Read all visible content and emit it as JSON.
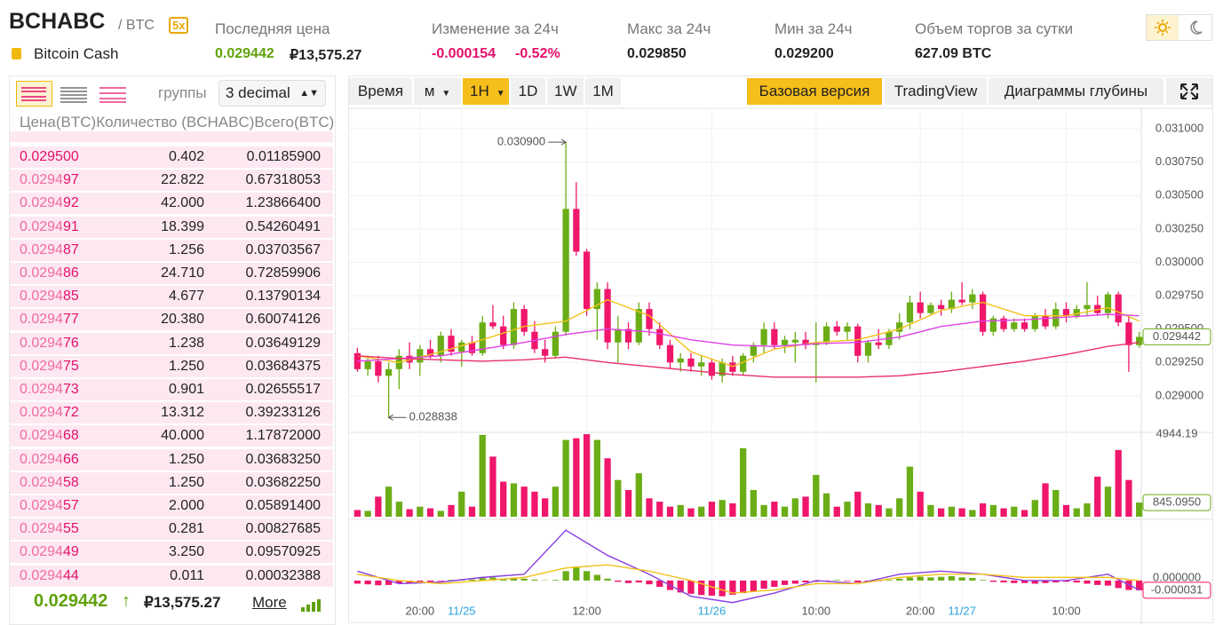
{
  "header": {
    "symbol": "BCHABC",
    "quote": "/ BTC",
    "leverage": "5x",
    "name": "Bitcoin Cash",
    "stats": [
      {
        "label": "Последняя цена",
        "value": "0.029442",
        "extra": "₽13,575.27"
      },
      {
        "label": "Изменение за 24ч",
        "value": "-0.000154",
        "extra": "-0.52%"
      },
      {
        "label": "Макс за 24ч",
        "value": "0.029850"
      },
      {
        "label": "Мин за 24ч",
        "value": "0.029200"
      },
      {
        "label": "Объем торгов за сутки",
        "value": "627.09 BTC"
      }
    ]
  },
  "orderbook": {
    "group_label": "группы",
    "group_value": "3 decimal",
    "columns": [
      "Цена(BTC)",
      "Количество (BCHABC)",
      "Всего(BTC)"
    ],
    "rows": [
      {
        "price": [
          "0.029500"
        ],
        "amount": "0.402",
        "total": "0.01185900"
      },
      {
        "price": [
          "0.0294",
          "97"
        ],
        "amount": "22.822",
        "total": "0.67318053"
      },
      {
        "price": [
          "0.0294",
          "92"
        ],
        "amount": "42.000",
        "total": "1.23866400"
      },
      {
        "price": [
          "0.0294",
          "91"
        ],
        "amount": "18.399",
        "total": "0.54260491"
      },
      {
        "price": [
          "0.0294",
          "87"
        ],
        "amount": "1.256",
        "total": "0.03703567"
      },
      {
        "price": [
          "0.0294",
          "86"
        ],
        "amount": "24.710",
        "total": "0.72859906"
      },
      {
        "price": [
          "0.0294",
          "85"
        ],
        "amount": "4.677",
        "total": "0.13790134"
      },
      {
        "price": [
          "0.0294",
          "77"
        ],
        "amount": "20.380",
        "total": "0.60074126"
      },
      {
        "price": [
          "0.0294",
          "76"
        ],
        "amount": "1.238",
        "total": "0.03649129"
      },
      {
        "price": [
          "0.0294",
          "75"
        ],
        "amount": "1.250",
        "total": "0.03684375"
      },
      {
        "price": [
          "0.0294",
          "73"
        ],
        "amount": "0.901",
        "total": "0.02655517"
      },
      {
        "price": [
          "0.0294",
          "72"
        ],
        "amount": "13.312",
        "total": "0.39233126"
      },
      {
        "price": [
          "0.0294",
          "68"
        ],
        "amount": "40.000",
        "total": "1.17872000"
      },
      {
        "price": [
          "0.0294",
          "66"
        ],
        "amount": "1.250",
        "total": "0.03683250"
      },
      {
        "price": [
          "0.0294",
          "58"
        ],
        "amount": "1.250",
        "total": "0.03682250"
      },
      {
        "price": [
          "0.0294",
          "57"
        ],
        "amount": "2.000",
        "total": "0.05891400"
      },
      {
        "price": [
          "0.0294",
          "55"
        ],
        "amount": "0.281",
        "total": "0.00827685"
      },
      {
        "price": [
          "0.0294",
          "49"
        ],
        "amount": "3.250",
        "total": "0.09570925"
      },
      {
        "price": [
          "0.0294",
          "44"
        ],
        "amount": "0.011",
        "total": "0.00032388"
      }
    ],
    "last_price": "0.029442",
    "last_fiat": "₽13,575.27",
    "more": "More"
  },
  "toolbar": {
    "intervals": [
      "Время",
      "м",
      "1H",
      "1D",
      "1W",
      "1M"
    ],
    "active_interval": 2,
    "views": [
      "Базовая версия",
      "TradingView",
      "Диаграммы глубины"
    ],
    "active_view": 0
  },
  "chart_data": {
    "type": "candlestick",
    "up_color": "#6aad16",
    "down_color": "#f0166b",
    "xlim": [
      -0.8,
      75.2
    ],
    "xticks": [
      {
        "value": 6,
        "label": "20:00"
      },
      {
        "value": 22,
        "label": "12:00"
      },
      {
        "value": 44,
        "label": "10:00"
      },
      {
        "value": 54,
        "label": "20:00"
      },
      {
        "value": 68,
        "label": "10:00"
      }
    ],
    "date_ticks": [
      {
        "value": 10,
        "label": "11/25"
      },
      {
        "value": 34,
        "label": "11/26"
      },
      {
        "value": 58,
        "label": "11/27"
      }
    ],
    "date_color": "#2aa4dc",
    "ylim": [
      0.02874,
      0.03112
    ],
    "yticks": [
      {
        "value": 0.029,
        "label": "0.029000"
      },
      {
        "value": 0.02925,
        "label": "0.029250"
      },
      {
        "value": 0.0295,
        "label": "0.029500"
      },
      {
        "value": 0.02975,
        "label": "0.029750"
      },
      {
        "value": 0.03,
        "label": "0.030000"
      },
      {
        "value": 0.03025,
        "label": "0.030250"
      },
      {
        "value": 0.0305,
        "label": "0.030500"
      },
      {
        "value": 0.03075,
        "label": "0.030750"
      },
      {
        "value": 0.031,
        "label": "0.031000"
      }
    ],
    "grid": true,
    "candles": [
      [
        0.02932,
        0.02936,
        0.02918,
        0.0292
      ],
      [
        0.0292,
        0.0293,
        0.02915,
        0.02926
      ],
      [
        0.02926,
        0.0293,
        0.0291,
        0.02915
      ],
      [
        0.02915,
        0.02925,
        0.028838,
        0.0292
      ],
      [
        0.0292,
        0.02935,
        0.02905,
        0.0293
      ],
      [
        0.0293,
        0.0294,
        0.0292,
        0.02925
      ],
      [
        0.02925,
        0.02938,
        0.02915,
        0.02935
      ],
      [
        0.02935,
        0.02942,
        0.02928,
        0.0293
      ],
      [
        0.0293,
        0.02948,
        0.02925,
        0.02945
      ],
      [
        0.02945,
        0.0295,
        0.0293,
        0.02933
      ],
      [
        0.02933,
        0.02942,
        0.02922,
        0.0294
      ],
      [
        0.0294,
        0.02945,
        0.0293,
        0.02932
      ],
      [
        0.02932,
        0.0296,
        0.0293,
        0.02955
      ],
      [
        0.02955,
        0.02968,
        0.0295,
        0.02952
      ],
      [
        0.02952,
        0.0296,
        0.02935,
        0.02938
      ],
      [
        0.02938,
        0.0297,
        0.02935,
        0.02965
      ],
      [
        0.02965,
        0.02968,
        0.02945,
        0.02948
      ],
      [
        0.02948,
        0.02956,
        0.02932,
        0.02935
      ],
      [
        0.02935,
        0.02942,
        0.02925,
        0.0293
      ],
      [
        0.0293,
        0.02952,
        0.02928,
        0.02948
      ],
      [
        0.02948,
        0.0309,
        0.02945,
        0.0304
      ],
      [
        0.0304,
        0.0306,
        0.03005,
        0.03008
      ],
      [
        0.03008,
        0.0301,
        0.0296,
        0.02965
      ],
      [
        0.02965,
        0.02985,
        0.02942,
        0.0298
      ],
      [
        0.0298,
        0.02985,
        0.02935,
        0.0294
      ],
      [
        0.0294,
        0.0296,
        0.02925,
        0.0295
      ],
      [
        0.0295,
        0.02955,
        0.02935,
        0.0294
      ],
      [
        0.0294,
        0.0297,
        0.02938,
        0.02965
      ],
      [
        0.02965,
        0.0297,
        0.02945,
        0.0295
      ],
      [
        0.0295,
        0.02955,
        0.02935,
        0.02938
      ],
      [
        0.02938,
        0.02942,
        0.0292,
        0.02925
      ],
      [
        0.02925,
        0.02932,
        0.02918,
        0.02928
      ],
      [
        0.02928,
        0.02932,
        0.02918,
        0.02922
      ],
      [
        0.02922,
        0.0293,
        0.02915,
        0.02925
      ],
      [
        0.02925,
        0.02928,
        0.02912,
        0.02915
      ],
      [
        0.02915,
        0.02928,
        0.0291,
        0.02925
      ],
      [
        0.02925,
        0.0293,
        0.02915,
        0.02918
      ],
      [
        0.02918,
        0.02932,
        0.02915,
        0.0293
      ],
      [
        0.0293,
        0.0294,
        0.02925,
        0.02938
      ],
      [
        0.02938,
        0.02955,
        0.02932,
        0.0295
      ],
      [
        0.0295,
        0.02955,
        0.02935,
        0.02938
      ],
      [
        0.02938,
        0.02945,
        0.02932,
        0.02942
      ],
      [
        0.0294,
        0.02948,
        0.02925,
        0.02942
      ],
      [
        0.02942,
        0.02948,
        0.02935,
        0.02938
      ],
      [
        0.02938,
        0.02955,
        0.0291,
        0.0294
      ],
      [
        0.0294,
        0.02955,
        0.02938,
        0.02952
      ],
      [
        0.02952,
        0.02956,
        0.02945,
        0.02948
      ],
      [
        0.02948,
        0.02955,
        0.02942,
        0.02952
      ],
      [
        0.02952,
        0.02954,
        0.02925,
        0.0293
      ],
      [
        0.0293,
        0.02942,
        0.02925,
        0.0294
      ],
      [
        0.0294,
        0.0295,
        0.02935,
        0.02938
      ],
      [
        0.02938,
        0.0295,
        0.02935,
        0.02948
      ],
      [
        0.02948,
        0.02962,
        0.02942,
        0.02955
      ],
      [
        0.02955,
        0.02975,
        0.0295,
        0.0297
      ],
      [
        0.0297,
        0.02978,
        0.02958,
        0.02962
      ],
      [
        0.02962,
        0.0297,
        0.0296,
        0.02968
      ],
      [
        0.02968,
        0.02972,
        0.0296,
        0.02965
      ],
      [
        0.02965,
        0.02978,
        0.02962,
        0.02972
      ],
      [
        0.02972,
        0.02985,
        0.02968,
        0.0297
      ],
      [
        0.0297,
        0.0298,
        0.02965,
        0.02976
      ],
      [
        0.02976,
        0.02978,
        0.02945,
        0.02948
      ],
      [
        0.02948,
        0.0296,
        0.02945,
        0.02958
      ],
      [
        0.02958,
        0.0296,
        0.02948,
        0.0295
      ],
      [
        0.0295,
        0.02958,
        0.02948,
        0.02955
      ],
      [
        0.02955,
        0.02958,
        0.02948,
        0.0295
      ],
      [
        0.0295,
        0.02962,
        0.02948,
        0.0296
      ],
      [
        0.0296,
        0.02965,
        0.0295,
        0.02952
      ],
      [
        0.02952,
        0.0297,
        0.0295,
        0.02965
      ],
      [
        0.02965,
        0.0297,
        0.02955,
        0.0296
      ],
      [
        0.0296,
        0.02968,
        0.02958,
        0.02965
      ],
      [
        0.02965,
        0.02985,
        0.0296,
        0.02968
      ],
      [
        0.02968,
        0.02975,
        0.0296,
        0.02962
      ],
      [
        0.02962,
        0.02978,
        0.02958,
        0.02976
      ],
      [
        0.02976,
        0.02978,
        0.02952,
        0.02955
      ],
      [
        0.02955,
        0.0296,
        0.02918,
        0.02938
      ],
      [
        0.02938,
        0.02948,
        0.02936,
        0.029442
      ]
    ],
    "line_x": [
      0,
      4,
      8,
      12,
      16,
      20,
      24,
      28,
      32,
      36,
      40,
      44,
      48,
      52,
      56,
      60,
      64,
      68,
      72,
      75
    ],
    "price_lines": [
      {
        "color": "#f2c21a",
        "values": [
          0.0293,
          0.02925,
          0.02933,
          0.02942,
          0.02952,
          0.02956,
          0.02972,
          0.0296,
          0.02933,
          0.02922,
          0.02935,
          0.0294,
          0.02942,
          0.0295,
          0.02964,
          0.0297,
          0.0296,
          0.0296,
          0.02966,
          0.02956
        ]
      },
      {
        "color": "#e040e8",
        "values": [
          0.02926,
          0.02928,
          0.0293,
          0.02935,
          0.0294,
          0.02946,
          0.0295,
          0.02948,
          0.02942,
          0.02938,
          0.02937,
          0.02939,
          0.0294,
          0.02944,
          0.02952,
          0.02956,
          0.02957,
          0.02959,
          0.02961,
          0.0296
        ]
      },
      {
        "color": "#e8306a",
        "values": [
          0.0293,
          0.02928,
          0.02927,
          0.02926,
          0.02927,
          0.02929,
          0.02925,
          0.02922,
          0.02919,
          0.02916,
          0.02914,
          0.02914,
          0.02914,
          0.02915,
          0.02918,
          0.02922,
          0.02926,
          0.02931,
          0.02937,
          0.0294
        ]
      }
    ],
    "annotations": [
      {
        "x": 20,
        "value": 0.0309,
        "label": "0.030900"
      },
      {
        "x": 3,
        "value": 0.028838,
        "label": "0.028838"
      }
    ],
    "last_price": {
      "value": 0.029442,
      "label": "0.029442"
    },
    "volume": {
      "values": [
        400,
        350,
        1200,
        1800,
        900,
        450,
        600,
        500,
        350,
        700,
        1500,
        600,
        4900,
        3600,
        2100,
        2000,
        1800,
        1500,
        1100,
        1800,
        4600,
        4700,
        4944.19,
        4600,
        3500,
        2200,
        1600,
        2600,
        1100,
        900,
        600,
        700,
        500,
        600,
        900,
        1000,
        800,
        4100,
        1600,
        700,
        900,
        600,
        1100,
        1200,
        2500,
        1400,
        600,
        900,
        1500,
        800,
        700,
        500,
        1100,
        3000,
        1500,
        700,
        500,
        600,
        500,
        400,
        800,
        700,
        500,
        600,
        400,
        1000,
        2000,
        1600,
        700,
        500,
        800,
        2400,
        1800,
        4000,
        2200,
        845.095
      ],
      "ylim": [
        0,
        5000
      ],
      "yticks": [
        4944.19
      ],
      "last": {
        "value": 845.095,
        "label": "845.0950"
      }
    },
    "macd": {
      "hist": [
        -1e-05,
        -1.2e-05,
        -1.5e-05,
        -1.4e-05,
        -1e-05,
        -8e-06,
        -6e-06,
        -4e-06,
        -2e-06,
        2e-06,
        4e-06,
        3e-06,
        8e-06,
        1e-05,
        6e-06,
        9e-06,
        6e-06,
        3e-06,
        1e-06,
        2e-06,
        3e-05,
        4.5e-05,
        3e-05,
        1.8e-05,
        6e-06,
        -4e-06,
        -8e-06,
        -6e-06,
        -1.2e-05,
        -2e-05,
        -3e-05,
        -3.8e-05,
        -4.2e-05,
        -4.6e-05,
        -4.8e-05,
        -5e-05,
        -4.5e-05,
        -4e-05,
        -3.4e-05,
        -2.6e-05,
        -2e-05,
        -1.4e-05,
        -1e-05,
        -6e-06,
        -4e-06,
        -2e-06,
        2e-06,
        -2e-06,
        -6e-06,
        -4e-06,
        -2e-06,
        2e-06,
        6e-06,
        1e-05,
        1.2e-05,
        1e-05,
        1.2e-05,
        1.4e-05,
        1e-05,
        8e-06,
        2e-06,
        -4e-06,
        -6e-06,
        -8e-06,
        -8e-06,
        -1e-05,
        -8e-06,
        -6e-06,
        -4e-06,
        -6e-06,
        -1e-05,
        -1.4e-05,
        -1.6e-05,
        -2.4e-05,
        -3e-05,
        -3.1e-05
      ],
      "ylim": [
        -0.00013,
        0.000186
      ],
      "yticks": [
        {
          "value": 0,
          "label": "0.000000"
        }
      ],
      "last": {
        "value": -3.1e-05,
        "label": "-0.000031"
      },
      "lines": [
        {
          "color": "#8a3ee0",
          "values": [
            3e-05,
            -1e-05,
            -5e-06,
            1e-05,
            2e-05,
            0.00016,
            8e-05,
            2e-05,
            -5e-05,
            -7e-05,
            -4e-05,
            0,
            -1e-05,
            2e-05,
            3e-05,
            2e-05,
            0,
            0,
            2e-05,
            -3e-05
          ]
        },
        {
          "color": "#f2c21a",
          "values": [
            2e-05,
            0,
            -1e-05,
            0,
            1e-05,
            4e-05,
            5e-05,
            3e-05,
            0,
            -4e-05,
            -3e-05,
            -1e-05,
            -1e-05,
            1e-05,
            2e-05,
            2e-05,
            1e-05,
            1e-05,
            1e-05,
            0
          ]
        }
      ]
    }
  }
}
